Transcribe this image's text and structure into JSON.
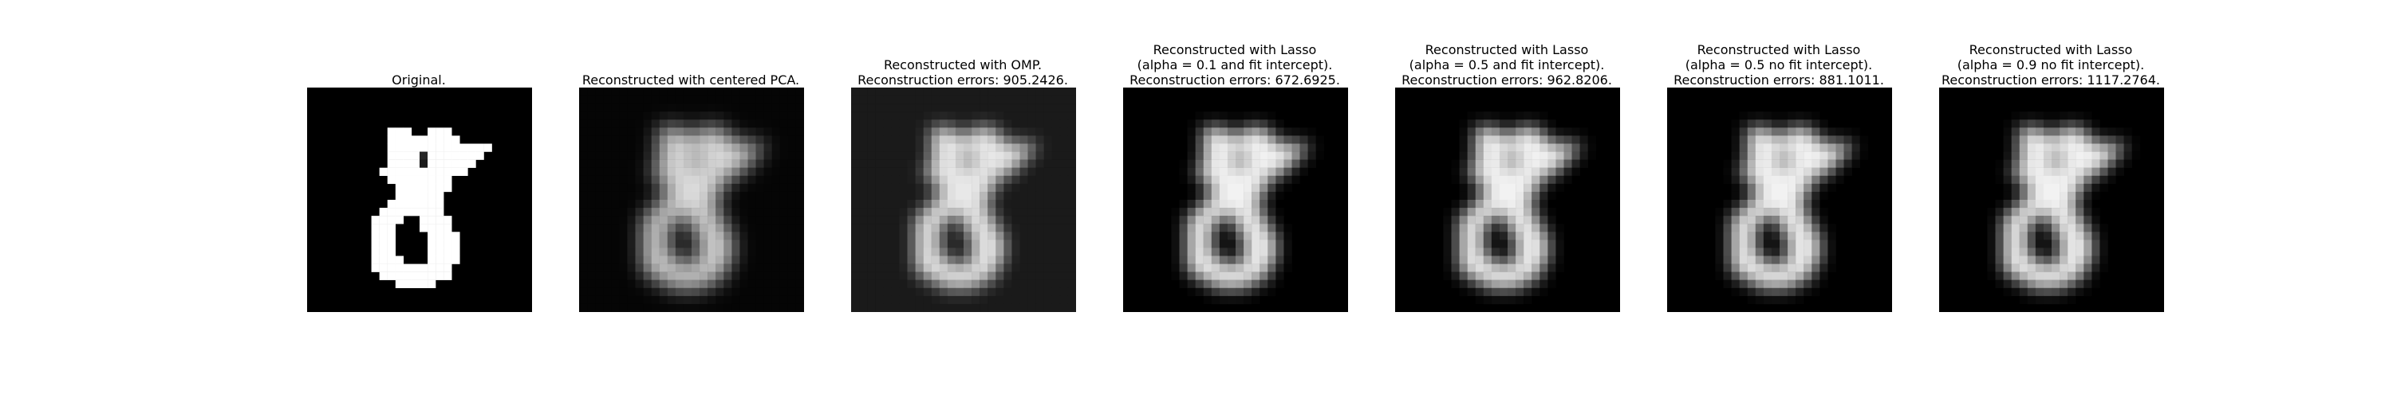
{
  "figure": {
    "panels": [
      {
        "title": "Original.",
        "image": "digit-eight-original",
        "mode": "original"
      },
      {
        "title": "Reconstructed with centered PCA.",
        "image": "digit-eight-reconstruction",
        "mode": "blur-strong"
      },
      {
        "title": "Reconstructed with OMP.\nReconstruction errors: 905.2426.",
        "image": "digit-eight-reconstruction",
        "mode": "omp"
      },
      {
        "title": "Reconstructed with Lasso\n(alpha = 0.1 and fit intercept).\nReconstruction errors: 672.6925.",
        "image": "digit-eight-reconstruction",
        "mode": "blur"
      },
      {
        "title": "Reconstructed with Lasso\n(alpha = 0.5 and fit intercept).\nReconstruction errors: 962.8206.",
        "image": "digit-eight-reconstruction",
        "mode": "blur"
      },
      {
        "title": "Reconstructed with Lasso\n(alpha = 0.5 no fit intercept).\nReconstruction errors: 881.1011.",
        "image": "digit-eight-reconstruction",
        "mode": "blur"
      },
      {
        "title": "Reconstructed with Lasso\n(alpha = 0.9 no fit intercept).\nReconstruction errors: 1117.2764.",
        "image": "digit-eight-reconstruction",
        "mode": "blur"
      }
    ]
  }
}
